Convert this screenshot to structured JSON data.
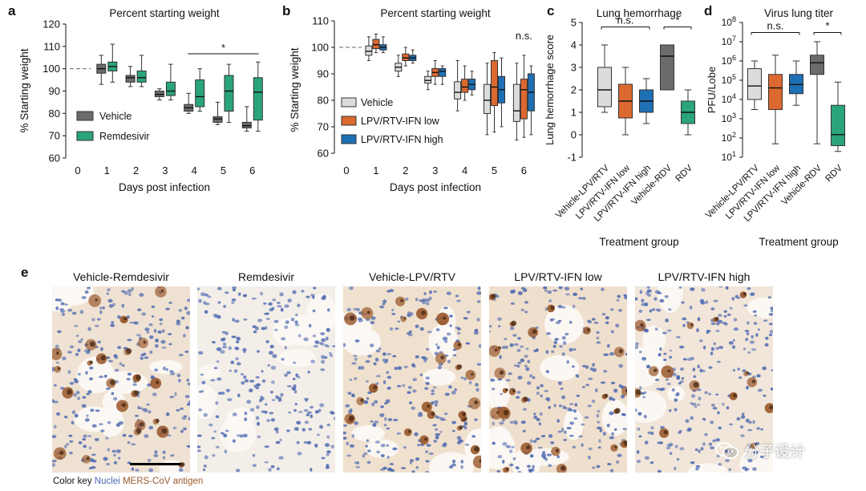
{
  "panels": {
    "a": {
      "letter": "a"
    },
    "b": {
      "letter": "b"
    },
    "c": {
      "letter": "c"
    },
    "d": {
      "letter": "d"
    },
    "e": {
      "letter": "e"
    }
  },
  "micrographs": [
    {
      "title": "Vehicle-Remdesivir",
      "staining": "high",
      "tint": "#efe2d3"
    },
    {
      "title": "Remdesivir",
      "staining": "none",
      "tint": "#f3eee8"
    },
    {
      "title": "Vehicle-LPV/RTV",
      "staining": "high",
      "tint": "#f0e1cf"
    },
    {
      "title": "LPV/RTV-IFN low",
      "staining": "high",
      "tint": "#efdfcd"
    },
    {
      "title": "LPV/RTV-IFN high",
      "staining": "medium",
      "tint": "#f1e6d9"
    }
  ],
  "color_key": {
    "label": "Color key",
    "nuclei": "Nuclei",
    "antigen": "MERS-CoV antigen",
    "nuclei_color": "#4a67b0",
    "antigen_color": "#9b5a2e"
  },
  "watermark": {
    "text": "分子设计",
    "icon": "wechat-icon"
  },
  "chart_data": [
    {
      "type": "box",
      "title": "Percent starting weight",
      "xlabel": "Days post infection",
      "ylabel": "% Starting weight",
      "ylim": [
        60,
        120
      ],
      "yticks": [
        60,
        70,
        80,
        90,
        100,
        110,
        120
      ],
      "categories": [
        "0",
        "1",
        "2",
        "3",
        "4",
        "5",
        "6"
      ],
      "baseline": 100,
      "legend": {
        "position": "bottom-left",
        "entries": [
          "Vehicle",
          "Remdesivir"
        ]
      },
      "annotations": [
        {
          "text": "*",
          "from": "4",
          "to": "6"
        }
      ],
      "series": [
        {
          "name": "Vehicle",
          "color": "#6b6b6b",
          "boxes": [
            null,
            {
              "min": 93,
              "q1": 98,
              "median": 100,
              "q3": 102,
              "max": 106
            },
            {
              "min": 92,
              "q1": 94,
              "median": 96,
              "q3": 97,
              "max": 101
            },
            {
              "min": 86,
              "q1": 87.5,
              "median": 88.5,
              "q3": 90,
              "max": 91
            },
            {
              "min": 80,
              "q1": 81,
              "median": 82.5,
              "q3": 84,
              "max": 89
            },
            {
              "min": 75,
              "q1": 76,
              "median": 77.5,
              "q3": 78.5,
              "max": 85
            },
            {
              "min": 72,
              "q1": 73.5,
              "median": 74.5,
              "q3": 76,
              "max": 83
            }
          ]
        },
        {
          "name": "Remdesivir",
          "color": "#2aa57a",
          "boxes": [
            null,
            {
              "min": 94,
              "q1": 99,
              "median": 101,
              "q3": 103,
              "max": 111
            },
            {
              "min": 92,
              "q1": 94,
              "median": 96,
              "q3": 99,
              "max": 106
            },
            {
              "min": 86,
              "q1": 88,
              "median": 90,
              "q3": 94,
              "max": 102
            },
            {
              "min": 81,
              "q1": 83,
              "median": 87.5,
              "q3": 95,
              "max": 100
            },
            {
              "min": 76,
              "q1": 81,
              "median": 90,
              "q3": 97,
              "max": 102
            },
            {
              "min": 72,
              "q1": 77,
              "median": 89.5,
              "q3": 96,
              "max": 103
            }
          ]
        }
      ]
    },
    {
      "type": "box",
      "title": "Percent starting weight",
      "xlabel": "Days post infection",
      "ylabel": "% Starting weight",
      "ylim": [
        60,
        110
      ],
      "yticks": [
        60,
        70,
        80,
        90,
        100,
        110
      ],
      "categories": [
        "0",
        "1",
        "2",
        "3",
        "4",
        "5",
        "6"
      ],
      "baseline": 100,
      "legend": {
        "position": "bottom-left",
        "entries": [
          "Vehicle",
          "LPV/RTV-IFN low",
          "LPV/RTV-IFN high"
        ]
      },
      "annotations": [
        {
          "text": "n.s.",
          "at": "6"
        }
      ],
      "series": [
        {
          "name": "Vehicle",
          "color": "#dcdcdc",
          "boxes": [
            null,
            {
              "min": 95,
              "q1": 97,
              "median": 98.5,
              "q3": 100.5,
              "max": 104
            },
            {
              "min": 89,
              "q1": 91,
              "median": 92.5,
              "q3": 94,
              "max": 97
            },
            {
              "min": 84,
              "q1": 86.5,
              "median": 87.5,
              "q3": 89,
              "max": 91
            },
            {
              "min": 76,
              "q1": 80.5,
              "median": 83,
              "q3": 87,
              "max": 95
            },
            {
              "min": 67,
              "q1": 75,
              "median": 80,
              "q3": 86,
              "max": 94
            },
            {
              "min": 65,
              "q1": 72,
              "median": 76,
              "q3": 86,
              "max": 94
            }
          ]
        },
        {
          "name": "LPV/RTV-IFN low",
          "color": "#dc6930",
          "boxes": [
            null,
            {
              "min": 98,
              "q1": 99.5,
              "median": 101,
              "q3": 103,
              "max": 105
            },
            {
              "min": 93,
              "q1": 95,
              "median": 96,
              "q3": 97.5,
              "max": 100
            },
            {
              "min": 86,
              "q1": 89,
              "median": 90.5,
              "q3": 92,
              "max": 95
            },
            {
              "min": 80,
              "q1": 83,
              "median": 85,
              "q3": 88,
              "max": 93
            },
            {
              "min": 68,
              "q1": 78,
              "median": 85,
              "q3": 95,
              "max": 98
            },
            {
              "min": 66,
              "q1": 73,
              "median": 84,
              "q3": 88,
              "max": 97
            }
          ]
        },
        {
          "name": "LPV/RTV-IFN high",
          "color": "#1f6fb4",
          "boxes": [
            null,
            {
              "min": 98,
              "q1": 99,
              "median": 100,
              "q3": 101,
              "max": 104
            },
            {
              "min": 94,
              "q1": 95,
              "median": 96,
              "q3": 97,
              "max": 99
            },
            {
              "min": 86,
              "q1": 89,
              "median": 91,
              "q3": 92,
              "max": 93
            },
            {
              "min": 82,
              "q1": 84,
              "median": 86,
              "q3": 88,
              "max": 91
            },
            {
              "min": 70,
              "q1": 79,
              "median": 84,
              "q3": 89,
              "max": 96
            },
            {
              "min": 67,
              "q1": 76,
              "median": 83,
              "q3": 90,
              "max": 93
            }
          ]
        }
      ]
    },
    {
      "type": "box",
      "title": "Lung hemorrhage",
      "xlabel": "Treatment group",
      "ylabel": "Lung hemorrhage score",
      "ylim": [
        -1,
        5
      ],
      "yticks": [
        -1,
        0,
        1,
        2,
        3,
        4,
        5
      ],
      "categories": [
        "Vehicle-LPV/RTV",
        "LPV/RTV-IFN low",
        "LPV/RTV-IFN high",
        "Vehicle-RDV",
        "RDV"
      ],
      "annotations": [
        {
          "text": "n.s.",
          "from": "Vehicle-LPV/RTV",
          "to": "LPV/RTV-IFN high"
        },
        {
          "text": "*",
          "from": "Vehicle-RDV",
          "to": "RDV"
        }
      ],
      "boxes": [
        {
          "color": "#dcdcdc",
          "min": 1,
          "q1": 1.25,
          "median": 2,
          "q3": 3,
          "max": 4
        },
        {
          "color": "#dc6930",
          "min": 0,
          "q1": 0.75,
          "median": 1.5,
          "q3": 2.25,
          "max": 3
        },
        {
          "color": "#1f6fb4",
          "min": 0.5,
          "q1": 1,
          "median": 1.5,
          "q3": 2,
          "max": 2.5
        },
        {
          "color": "#6b6b6b",
          "min": 2,
          "q1": 2,
          "median": 3.5,
          "q3": 4,
          "max": 4
        },
        {
          "color": "#2aa57a",
          "min": 0,
          "q1": 0.5,
          "median": 1,
          "q3": 1.5,
          "max": 2
        }
      ]
    },
    {
      "type": "box",
      "title": "Virus lung titer",
      "xlabel": "Treatment group",
      "ylabel": "PFU/Lobe",
      "yscale": "log",
      "ylim": [
        10,
        100000000
      ],
      "yticks": [
        10,
        100,
        1000,
        10000,
        100000,
        1000000,
        10000000,
        100000000
      ],
      "categories": [
        "Vehicle-LPV/RTV",
        "LPV/RTV-IFN low",
        "LPV/RTV-IFN high",
        "Vehicle-RDV",
        "RDV"
      ],
      "annotations": [
        {
          "text": "n.s.",
          "from": "Vehicle-LPV/RTV",
          "to": "LPV/RTV-IFN high"
        },
        {
          "text": "*",
          "from": "Vehicle-RDV",
          "to": "RDV"
        }
      ],
      "boxes": [
        {
          "color": "#dcdcdc",
          "min": 3000,
          "q1": 10000,
          "median": 50000,
          "q3": 400000,
          "max": 1000000
        },
        {
          "color": "#dc6930",
          "min": 50,
          "q1": 3000,
          "median": 40000,
          "q3": 200000,
          "max": 2000000
        },
        {
          "color": "#1f6fb4",
          "min": 5000,
          "q1": 20000,
          "median": 60000,
          "q3": 200000,
          "max": 1000000
        },
        {
          "color": "#6b6b6b",
          "min": 50,
          "q1": 200000,
          "median": 800000,
          "q3": 2000000,
          "max": 10000000
        },
        {
          "color": "#2aa57a",
          "min": 20,
          "q1": 40,
          "median": 150,
          "q3": 5000,
          "max": 80000
        }
      ]
    }
  ]
}
